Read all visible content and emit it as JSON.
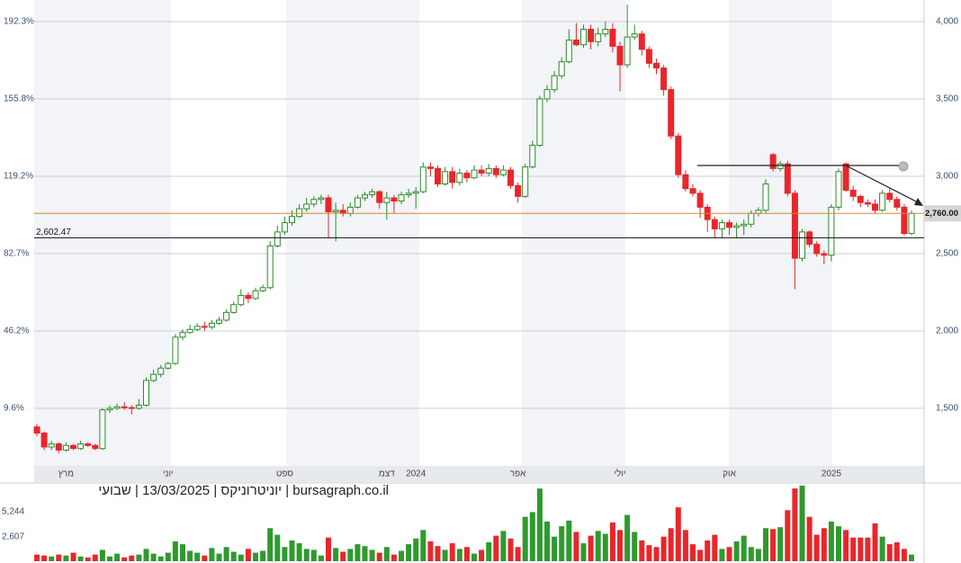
{
  "chart_data": {
    "type": "candlestick",
    "caption": "bursagraph.co.il | יוניטרוניקס | 13/03/2025 | שבועי",
    "up_color": "#2a8a2a",
    "down_color": "#e8262b",
    "ylim": [
      1128,
      4116
    ],
    "yticks": [
      {
        "value": 1500,
        "label": "1,500"
      },
      {
        "value": 2000,
        "label": "2,000"
      },
      {
        "value": 2500,
        "label": "2,500"
      },
      {
        "value": 3000,
        "label": "3,000"
      },
      {
        "value": 3500,
        "label": "3,500"
      },
      {
        "value": 4000,
        "label": "4,000"
      }
    ],
    "y2lim": [
      -17.6,
      200.7
    ],
    "y2ticks": [
      {
        "value": 9.6,
        "label": "9.6%"
      },
      {
        "value": 46.2,
        "label": "46.2%"
      },
      {
        "value": 82.7,
        "label": "82.7%"
      },
      {
        "value": 119.2,
        "label": "119.2%"
      },
      {
        "value": 155.8,
        "label": "155.8%"
      },
      {
        "value": 192.3,
        "label": "192.3%"
      }
    ],
    "support_line": {
      "value": 2602.47,
      "label": "2,602.47"
    },
    "last_price": {
      "value": 2760,
      "label": "2,760.00"
    },
    "categories": [
      null,
      null,
      null,
      null,
      "מרץ",
      null,
      null,
      null,
      null,
      null,
      null,
      null,
      null,
      null,
      null,
      null,
      null,
      null,
      "יוני",
      null,
      null,
      null,
      null,
      null,
      null,
      null,
      null,
      null,
      null,
      null,
      null,
      null,
      null,
      null,
      "ספט",
      null,
      null,
      null,
      null,
      null,
      null,
      null,
      null,
      null,
      null,
      null,
      null,
      null,
      "דצמ",
      null,
      null,
      null,
      "2024",
      null,
      null,
      null,
      null,
      null,
      null,
      null,
      null,
      null,
      null,
      null,
      null,
      null,
      "אפר",
      null,
      null,
      null,
      null,
      null,
      null,
      null,
      null,
      null,
      null,
      null,
      null,
      null,
      "יולי",
      null,
      null,
      null,
      null,
      null,
      null,
      null,
      null,
      null,
      null,
      null,
      null,
      null,
      null,
      "אוק",
      null,
      null,
      null,
      null,
      null,
      null,
      null,
      null,
      null,
      null,
      null,
      null,
      null,
      "2025",
      null,
      null,
      null,
      null,
      null,
      null,
      null,
      null,
      null,
      null,
      null
    ],
    "candles": [
      [
        1380,
        1400,
        1320,
        1340
      ],
      [
        1340,
        1350,
        1230,
        1250
      ],
      [
        1250,
        1290,
        1230,
        1270
      ],
      [
        1270,
        1280,
        1210,
        1230
      ],
      [
        1230,
        1280,
        1220,
        1260
      ],
      [
        1260,
        1270,
        1230,
        1240
      ],
      [
        1240,
        1290,
        1230,
        1270
      ],
      [
        1270,
        1280,
        1250,
        1260
      ],
      [
        1260,
        1270,
        1230,
        1240
      ],
      [
        1240,
        1500,
        1230,
        1490
      ],
      [
        1490,
        1520,
        1470,
        1500
      ],
      [
        1500,
        1530,
        1490,
        1510
      ],
      [
        1510,
        1540,
        1490,
        1505
      ],
      [
        1505,
        1520,
        1460,
        1500
      ],
      [
        1500,
        1560,
        1490,
        1520
      ],
      [
        1520,
        1700,
        1510,
        1680
      ],
      [
        1680,
        1750,
        1670,
        1720
      ],
      [
        1720,
        1780,
        1700,
        1760
      ],
      [
        1760,
        1800,
        1750,
        1790
      ],
      [
        1790,
        1980,
        1780,
        1960
      ],
      [
        1960,
        2010,
        1940,
        1990
      ],
      [
        1990,
        2040,
        1980,
        2010
      ],
      [
        2010,
        2050,
        2000,
        2030
      ],
      [
        2030,
        2060,
        2000,
        2025
      ],
      [
        2025,
        2070,
        2010,
        2050
      ],
      [
        2050,
        2090,
        2040,
        2070
      ],
      [
        2070,
        2140,
        2060,
        2120
      ],
      [
        2120,
        2190,
        2110,
        2170
      ],
      [
        2170,
        2270,
        2160,
        2230
      ],
      [
        2230,
        2250,
        2180,
        2210
      ],
      [
        2210,
        2280,
        2200,
        2260
      ],
      [
        2260,
        2300,
        2250,
        2280
      ],
      [
        2280,
        2580,
        2270,
        2550
      ],
      [
        2550,
        2680,
        2540,
        2640
      ],
      [
        2640,
        2740,
        2620,
        2700
      ],
      [
        2700,
        2780,
        2680,
        2740
      ],
      [
        2740,
        2820,
        2730,
        2790
      ],
      [
        2790,
        2860,
        2770,
        2820
      ],
      [
        2820,
        2870,
        2800,
        2850
      ],
      [
        2850,
        2880,
        2820,
        2860
      ],
      [
        2860,
        2880,
        2600,
        2770
      ],
      [
        2770,
        2830,
        2580,
        2780
      ],
      [
        2780,
        2820,
        2740,
        2760
      ],
      [
        2760,
        2830,
        2740,
        2800
      ],
      [
        2800,
        2880,
        2790,
        2860
      ],
      [
        2860,
        2900,
        2840,
        2880
      ],
      [
        2880,
        2920,
        2860,
        2900
      ],
      [
        2900,
        2910,
        2790,
        2830
      ],
      [
        2830,
        2900,
        2720,
        2860
      ],
      [
        2860,
        2880,
        2760,
        2840
      ],
      [
        2840,
        2900,
        2820,
        2880
      ],
      [
        2880,
        2920,
        2860,
        2890
      ],
      [
        2890,
        2930,
        2790,
        2900
      ],
      [
        2900,
        3090,
        2890,
        3060
      ],
      [
        3060,
        3090,
        3000,
        3050
      ],
      [
        3050,
        3070,
        2930,
        2950
      ],
      [
        2950,
        3060,
        2940,
        3030
      ],
      [
        3030,
        3060,
        2920,
        2960
      ],
      [
        2960,
        3050,
        2940,
        3020
      ],
      [
        3020,
        3040,
        2960,
        2990
      ],
      [
        2990,
        3070,
        2980,
        3040
      ],
      [
        3040,
        3070,
        3000,
        3020
      ],
      [
        3020,
        3080,
        3000,
        3050
      ],
      [
        3050,
        3070,
        2990,
        3010
      ],
      [
        3010,
        3070,
        3000,
        3040
      ],
      [
        3040,
        3060,
        2920,
        2940
      ],
      [
        2940,
        2960,
        2830,
        2870
      ],
      [
        2870,
        3080,
        2860,
        3060
      ],
      [
        3060,
        3230,
        3050,
        3200
      ],
      [
        3200,
        3520,
        3190,
        3500
      ],
      [
        3500,
        3590,
        3480,
        3560
      ],
      [
        3560,
        3680,
        3540,
        3650
      ],
      [
        3650,
        3770,
        3630,
        3740
      ],
      [
        3740,
        3950,
        3730,
        3880
      ],
      [
        3880,
        3990,
        3840,
        3850
      ],
      [
        3850,
        3980,
        3830,
        3950
      ],
      [
        3950,
        3980,
        3820,
        3870
      ],
      [
        3870,
        3960,
        3840,
        3920
      ],
      [
        3920,
        4000,
        3900,
        3950
      ],
      [
        3950,
        3990,
        3800,
        3840
      ],
      [
        3840,
        3870,
        3550,
        3720
      ],
      [
        3720,
        4110,
        3700,
        3900
      ],
      [
        3900,
        3980,
        3880,
        3920
      ],
      [
        3920,
        3940,
        3780,
        3820
      ],
      [
        3820,
        3840,
        3700,
        3730
      ],
      [
        3730,
        3760,
        3660,
        3700
      ],
      [
        3700,
        3720,
        3520,
        3560
      ],
      [
        3560,
        3580,
        3240,
        3260
      ],
      [
        3260,
        3280,
        2990,
        3010
      ],
      [
        3010,
        3040,
        2900,
        2920
      ],
      [
        2920,
        2950,
        2870,
        2890
      ],
      [
        2890,
        2910,
        2730,
        2800
      ],
      [
        2800,
        2820,
        2640,
        2720
      ],
      [
        2720,
        2740,
        2600,
        2660
      ],
      [
        2660,
        2720,
        2600,
        2700
      ],
      [
        2700,
        2720,
        2620,
        2670
      ],
      [
        2670,
        2700,
        2600,
        2680
      ],
      [
        2680,
        2720,
        2620,
        2690
      ],
      [
        2690,
        2780,
        2670,
        2760
      ],
      [
        2760,
        2800,
        2740,
        2780
      ],
      [
        2780,
        2980,
        2760,
        2950
      ],
      [
        3140,
        3150,
        3030,
        3050
      ],
      [
        3050,
        3100,
        3030,
        3080
      ],
      [
        3080,
        3100,
        2870,
        2890
      ],
      [
        2890,
        2910,
        2270,
        2470
      ],
      [
        2470,
        2660,
        2450,
        2640
      ],
      [
        2640,
        2650,
        2540,
        2560
      ],
      [
        2560,
        2580,
        2480,
        2500
      ],
      [
        2500,
        2520,
        2430,
        2490
      ],
      [
        2490,
        2820,
        2450,
        2800
      ],
      [
        2800,
        3050,
        2780,
        3030
      ],
      [
        3080,
        3090,
        2900,
        2910
      ],
      [
        2910,
        2940,
        2840,
        2870
      ],
      [
        2870,
        2880,
        2800,
        2830
      ],
      [
        2830,
        2850,
        2800,
        2820
      ],
      [
        2820,
        2850,
        2760,
        2780
      ],
      [
        2780,
        2910,
        2770,
        2890
      ],
      [
        2890,
        2920,
        2830,
        2850
      ],
      [
        2850,
        2870,
        2780,
        2800
      ],
      [
        2800,
        2820,
        2620,
        2630
      ],
      [
        2630,
        2780,
        2620,
        2760
      ]
    ],
    "volume": [
      700,
      600,
      500,
      700,
      600,
      900,
      500,
      400,
      700,
      1200,
      500,
      800,
      400,
      600,
      700,
      1300,
      800,
      500,
      900,
      2100,
      1800,
      1100,
      900,
      600,
      1400,
      800,
      1500,
      1000,
      700,
      1300,
      900,
      1100,
      3500,
      2800,
      1500,
      2200,
      1900,
      1300,
      1200,
      600,
      2500,
      1400,
      1000,
      1300,
      1800,
      1600,
      1200,
      900,
      1500,
      700,
      1100,
      1800,
      2400,
      3300,
      2100,
      1600,
      1200,
      1900,
      1300,
      1500,
      800,
      1200,
      2000,
      2700,
      3200,
      2400,
      1500,
      4700,
      5200,
      7700,
      4200,
      2600,
      3700,
      4300,
      3100,
      1900,
      2700,
      3200,
      2900,
      4100,
      3300,
      4900,
      3100,
      2200,
      1700,
      1500,
      2600,
      3500,
      5700,
      3300,
      1800,
      1200,
      2200,
      2800,
      1300,
      1500,
      2100,
      2700,
      1500,
      1300,
      3500,
      3400,
      3600,
      5400,
      7700,
      8000,
      4700,
      2800,
      3500,
      4200,
      3700,
      3300,
      2500,
      2500,
      2500,
      4000,
      2600,
      1800,
      2000,
      1300,
      700
    ],
    "vlim": [
      0,
      8000
    ],
    "vticks": [
      {
        "value": 2607,
        "label": "2,607"
      },
      {
        "value": 5244,
        "label": "5,244"
      }
    ]
  }
}
